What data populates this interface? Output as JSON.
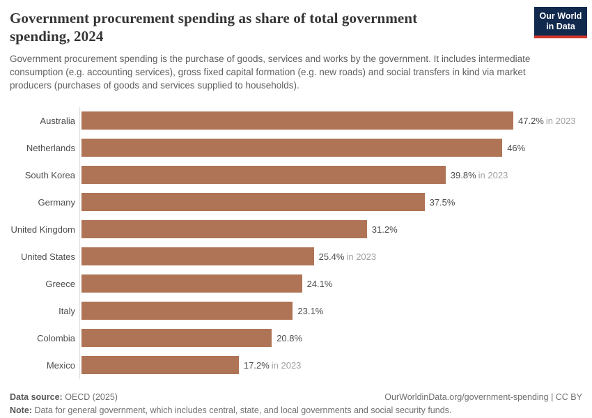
{
  "logo": {
    "line1": "Our World",
    "line2": "in Data"
  },
  "header": {
    "title": "Government procurement spending as share of total government spending, 2024",
    "subtitle": "Government procurement spending is the purchase of goods, services and works by the government. It includes intermediate consumption (e.g. accounting services), gross fixed capital formation (e.g. new roads) and social transfers in kind via market producers (purchases of goods and services supplied to households)."
  },
  "chart_data": {
    "type": "bar",
    "orientation": "horizontal",
    "title": "Government procurement spending as share of total government spending, 2024",
    "xlabel": "",
    "ylabel": "",
    "xlim": [
      0,
      47.2
    ],
    "grid": false,
    "legend": false,
    "categories": [
      "Australia",
      "Netherlands",
      "South Korea",
      "Germany",
      "United Kingdom",
      "United States",
      "Greece",
      "Italy",
      "Colombia",
      "Mexico"
    ],
    "values": [
      47.2,
      46,
      39.8,
      37.5,
      31.2,
      25.4,
      24.1,
      23.1,
      20.8,
      17.2
    ],
    "entries": [
      {
        "label": "Australia",
        "value": 47.2,
        "value_label": "47.2%",
        "year_note": "in 2023"
      },
      {
        "label": "Netherlands",
        "value": 46,
        "value_label": "46%",
        "year_note": ""
      },
      {
        "label": "South Korea",
        "value": 39.8,
        "value_label": "39.8%",
        "year_note": "in 2023"
      },
      {
        "label": "Germany",
        "value": 37.5,
        "value_label": "37.5%",
        "year_note": ""
      },
      {
        "label": "United Kingdom",
        "value": 31.2,
        "value_label": "31.2%",
        "year_note": ""
      },
      {
        "label": "United States",
        "value": 25.4,
        "value_label": "25.4%",
        "year_note": "in 2023"
      },
      {
        "label": "Greece",
        "value": 24.1,
        "value_label": "24.1%",
        "year_note": ""
      },
      {
        "label": "Italy",
        "value": 23.1,
        "value_label": "23.1%",
        "year_note": ""
      },
      {
        "label": "Colombia",
        "value": 20.8,
        "value_label": "20.8%",
        "year_note": ""
      },
      {
        "label": "Mexico",
        "value": 17.2,
        "value_label": "17.2%",
        "year_note": "in 2023"
      }
    ]
  },
  "colors": {
    "bar": "#AF7456",
    "logo_bg": "#12294E",
    "logo_red": "#D5352C",
    "axis_line": "#dcdcdc"
  },
  "footer": {
    "source_label": "Data source:",
    "source_value": "OECD (2025)",
    "link": "OurWorldinData.org/government-spending | CC BY",
    "note_label": "Note:",
    "note_value": "Data for general government, which includes central, state, and local governments and social security funds."
  }
}
